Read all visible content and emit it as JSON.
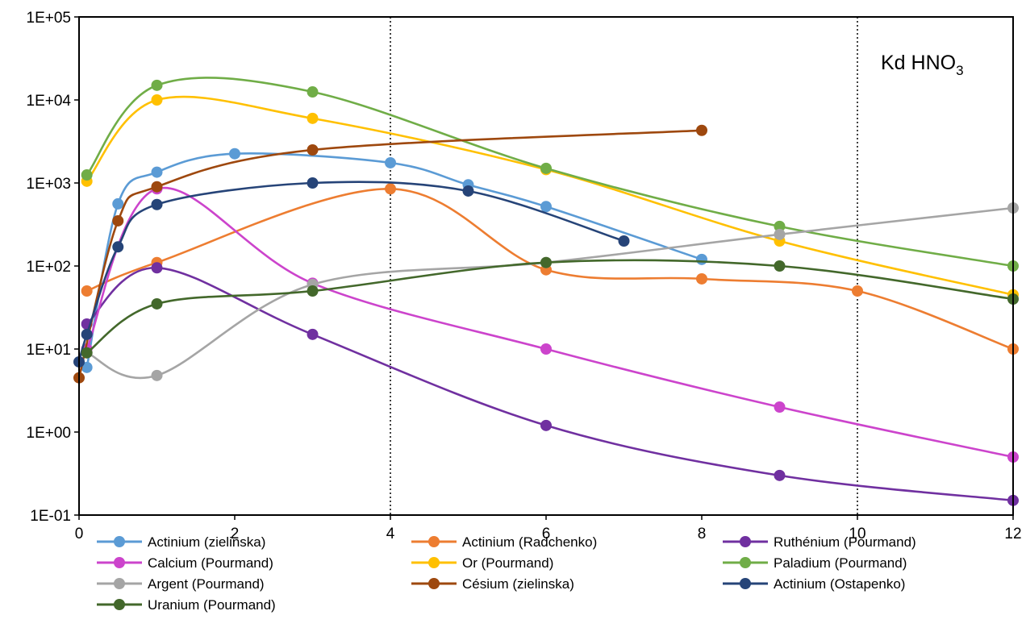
{
  "chart_data": {
    "type": "line",
    "title": "Kd HNO",
    "title_subscript": "3",
    "xlabel": "",
    "ylabel": "",
    "xlim": [
      0,
      12
    ],
    "ylim": [
      0.1,
      100000
    ],
    "y_scale": "log",
    "x_ticks": [
      "0",
      "2",
      "4",
      "6",
      "8",
      "10",
      "12"
    ],
    "y_ticks": [
      "1E-01",
      "1E+00",
      "1E+01",
      "1E+02",
      "1E+03",
      "1E+04",
      "1E+05"
    ],
    "vertical_reference_lines_x": [
      4,
      10
    ],
    "grid": false,
    "legend_position": "bottom",
    "series": [
      {
        "name": "Actinium (zielinska)",
        "color": "#5B9BD5",
        "x": [
          0.1,
          0.5,
          1,
          2,
          4,
          5,
          6,
          8
        ],
        "y": [
          6,
          560,
          1350,
          2250,
          1750,
          950,
          520,
          120
        ]
      },
      {
        "name": "Actinium (Radchenko)",
        "color": "#ED7D31",
        "x": [
          0.1,
          1,
          4,
          6,
          8,
          10,
          12
        ],
        "y": [
          50,
          110,
          850,
          90,
          70,
          50,
          10
        ]
      },
      {
        "name": "Ruthénium (Pourmand)",
        "color": "#7030A0",
        "x": [
          0.1,
          1,
          3,
          6,
          9,
          12
        ],
        "y": [
          20,
          95,
          15,
          1.2,
          0.3,
          0.15
        ]
      },
      {
        "name": "Calcium (Pourmand)",
        "color": "#CC44CC",
        "x": [
          0.1,
          1,
          3,
          6,
          9,
          12
        ],
        "y": [
          10,
          850,
          62,
          10,
          2,
          0.5
        ]
      },
      {
        "name": "Or (Pourmand)",
        "color": "#FFC000",
        "x": [
          0.1,
          1,
          3,
          6,
          9,
          12
        ],
        "y": [
          1050,
          10000,
          6000,
          1450,
          200,
          45
        ]
      },
      {
        "name": "Paladium (Pourmand)",
        "color": "#70AD47",
        "x": [
          0.1,
          1,
          3,
          6,
          9,
          12
        ],
        "y": [
          1250,
          15000,
          12500,
          1500,
          300,
          100
        ]
      },
      {
        "name": "Argent (Pourmand)",
        "color": "#A5A5A5",
        "x": [
          0.1,
          1,
          3,
          6,
          9,
          12
        ],
        "y": [
          9,
          4.8,
          60,
          110,
          240,
          500
        ]
      },
      {
        "name": "Césium (zielinska)",
        "color": "#9E480E",
        "x": [
          0,
          0.5,
          1,
          3,
          8
        ],
        "y": [
          4.5,
          350,
          900,
          2500,
          4300
        ]
      },
      {
        "name": "Actinium (Ostapenko)",
        "color": "#264478",
        "x": [
          0,
          0.1,
          0.5,
          1,
          3,
          5,
          7
        ],
        "y": [
          7,
          15,
          170,
          550,
          1000,
          800,
          200
        ]
      },
      {
        "name": "Uranium (Pourmand)",
        "color": "#43682B",
        "x": [
          0.1,
          1,
          3,
          6,
          9,
          12
        ],
        "y": [
          9,
          35,
          50,
          110,
          100,
          40
        ]
      }
    ]
  }
}
